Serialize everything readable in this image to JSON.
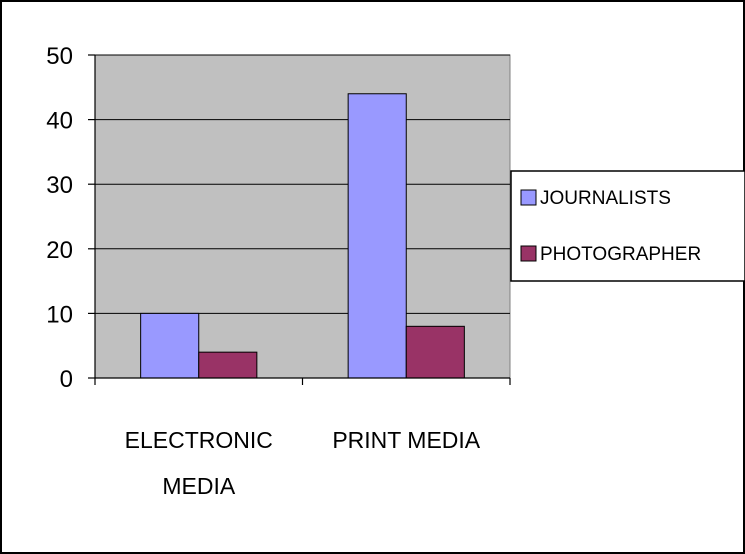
{
  "chart_data": {
    "type": "bar",
    "title": "",
    "xlabel": "",
    "ylabel": "",
    "categories": [
      [
        "ELECTRONIC",
        "MEDIA"
      ],
      [
        "PRINT MEDIA"
      ]
    ],
    "series": [
      {
        "name": "JOURNALISTS",
        "values": [
          10,
          44
        ],
        "color": "#9999ff"
      },
      {
        "name": "PHOTOGRAPHER",
        "values": [
          4,
          8
        ],
        "color": "#993366"
      }
    ],
    "ylim": [
      0,
      50
    ],
    "yticks": [
      0,
      10,
      20,
      30,
      40,
      50
    ],
    "grid": true,
    "plot_background": "#c0c0c0",
    "legend_position": "right"
  }
}
